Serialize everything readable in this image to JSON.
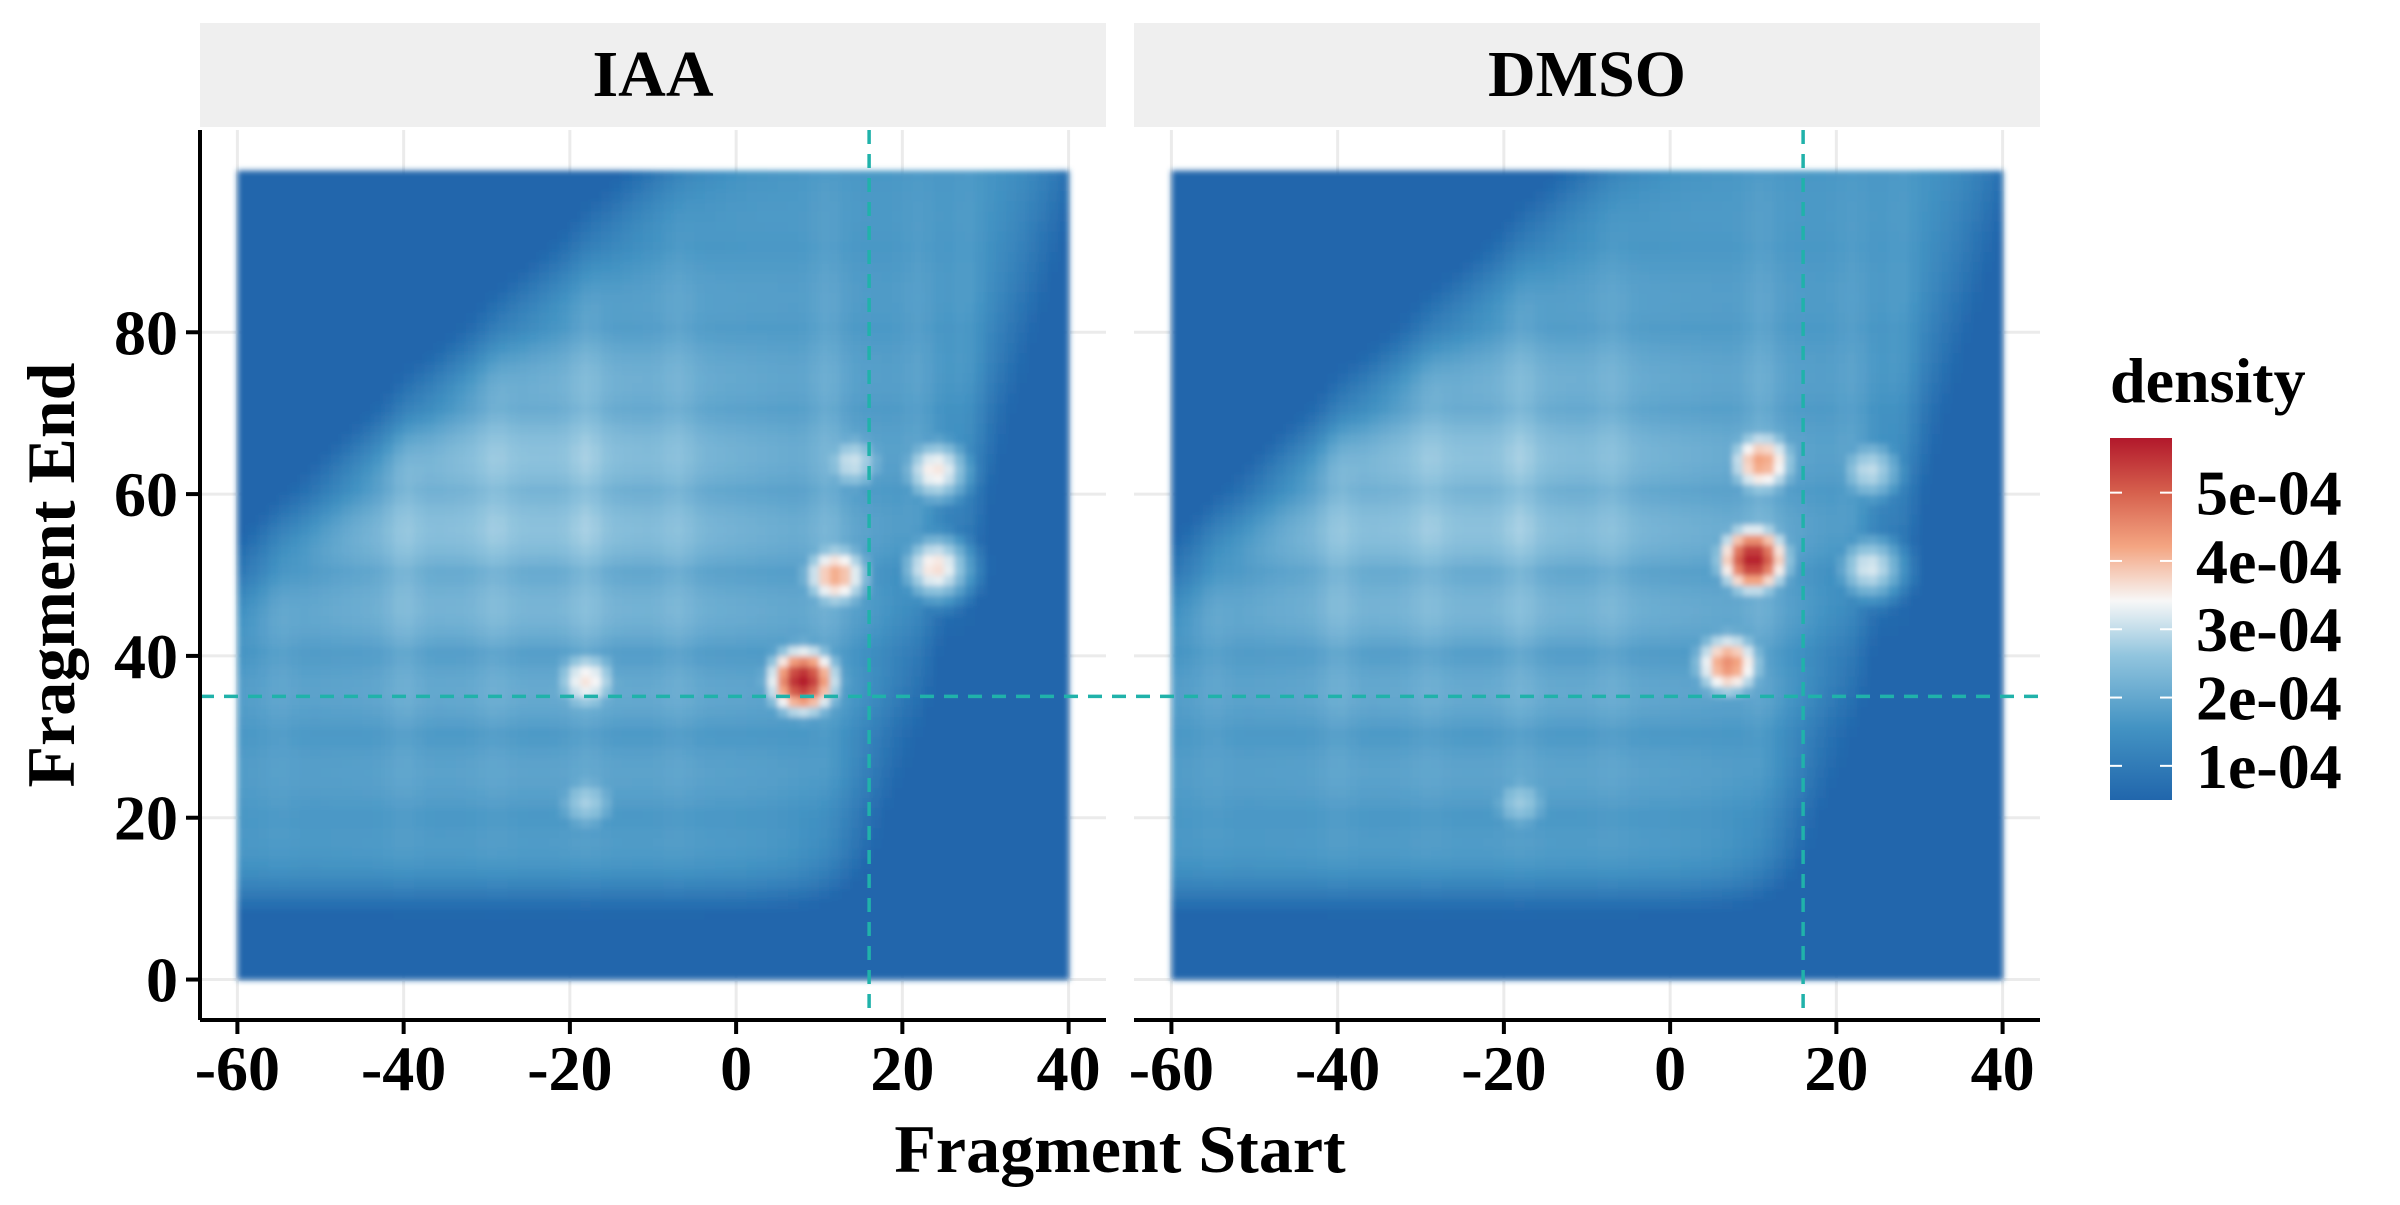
{
  "chart_data": {
    "type": "heatmap",
    "xlabel": "Fragment Start",
    "ylabel": "Fragment End",
    "xlim": [
      -60,
      40
    ],
    "ylim": [
      0,
      100
    ],
    "x_ticks": [
      "-60",
      "-40",
      "-20",
      "0",
      "20",
      "40"
    ],
    "x_tick_values": [
      -60,
      -40,
      -20,
      0,
      20,
      40
    ],
    "y_ticks": [
      "0",
      "20",
      "40",
      "60",
      "80"
    ],
    "y_tick_values": [
      0,
      20,
      40,
      60,
      80
    ],
    "reference_lines": {
      "x": 16,
      "y": 35,
      "color": "#20b2aa",
      "style": "dashed"
    },
    "legend": {
      "title": "density",
      "position": "right",
      "labels": [
        "1e-04",
        "2e-04",
        "3e-04",
        "4e-04",
        "5e-04"
      ],
      "values": [
        0.0001,
        0.0002,
        0.0003,
        0.0004,
        0.0005
      ],
      "range": [
        5e-05,
        0.00058
      ],
      "colors": {
        "low": "#2166ac",
        "mid": "#f7f7f7",
        "high": "#b2182b"
      }
    },
    "panels": [
      {
        "name": "IAA",
        "hotspots": [
          {
            "x": 8,
            "y": 37,
            "density": 0.00058
          },
          {
            "x": 12,
            "y": 50,
            "density": 0.00042
          },
          {
            "x": 24,
            "y": 51,
            "density": 0.00037
          },
          {
            "x": 24,
            "y": 63,
            "density": 0.00036
          },
          {
            "x": 14,
            "y": 64,
            "density": 0.00031
          },
          {
            "x": -18,
            "y": 37,
            "density": 0.00036
          },
          {
            "x": -18,
            "y": 22,
            "density": 0.00028
          }
        ]
      },
      {
        "name": "DMSO",
        "hotspots": [
          {
            "x": 10,
            "y": 52,
            "density": 0.00058
          },
          {
            "x": 7,
            "y": 39,
            "density": 0.00045
          },
          {
            "x": 11,
            "y": 64,
            "density": 0.00043
          },
          {
            "x": 24,
            "y": 51,
            "density": 0.00032
          },
          {
            "x": 24,
            "y": 63,
            "density": 0.0003
          },
          {
            "x": -18,
            "y": 22,
            "density": 0.00027
          }
        ]
      }
    ]
  }
}
